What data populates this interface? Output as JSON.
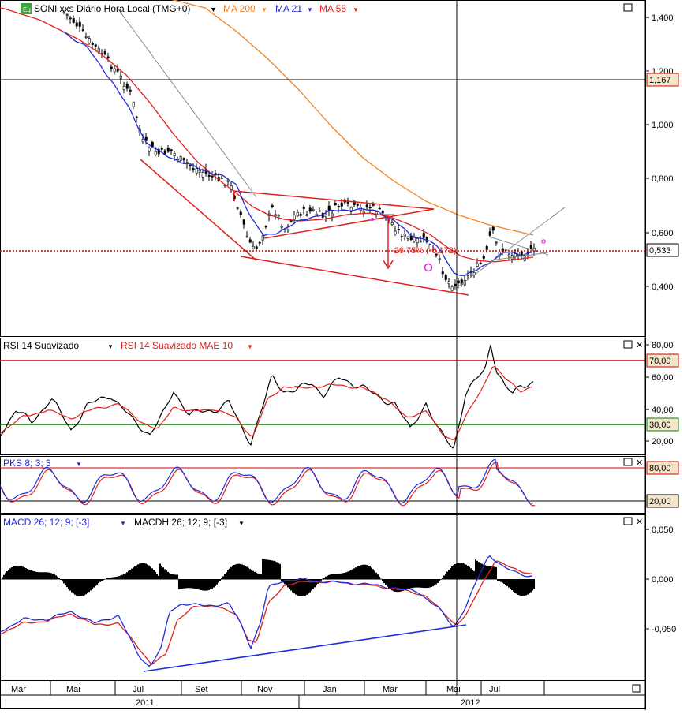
{
  "main_panel": {
    "badge": "Eq",
    "symbol_title": "SONI xxs Diário Hora Local (TMG+0)",
    "ma_labels": [
      {
        "label": "MA 200",
        "color": "#f58220"
      },
      {
        "label": "MA 21",
        "color": "#1f2bd6"
      },
      {
        "label": "MA 55",
        "color": "#e0201a"
      }
    ],
    "price_ticks": [
      "1,400",
      "1,200",
      "1,000",
      "0,800",
      "0,600",
      "0,400"
    ],
    "crosshair_value": "1,167",
    "last_value": "0,533",
    "annotation": "-26,75% (-0,172)"
  },
  "rsi_panel": {
    "label1": "RSI 14 Suavizado",
    "label2": "RSI 14 Suavizado MAE 10",
    "ticks": [
      "80,00",
      "60,00",
      "40,00",
      "20,00"
    ],
    "level_high": "70,00",
    "level_low": "30,00"
  },
  "pks_panel": {
    "label": "PKS 8; 3; 3",
    "level_high": "80,00",
    "level_low": "20,00"
  },
  "macd_panel": {
    "label1": "MACD 26; 12; 9; [-3]",
    "label2": "MACDH 26; 12; 9; [-3]",
    "ticks": [
      "0,050",
      "0,000",
      "-0,050"
    ]
  },
  "time_axis": {
    "months": [
      "Mar",
      "Mai",
      "Jul",
      "Set",
      "Nov",
      "Jan",
      "Mar",
      "Mai",
      "Jul"
    ],
    "years": [
      "2011",
      "2012"
    ]
  },
  "colors": {
    "ma200": "#f58220",
    "ma21": "#1f2bd6",
    "ma55": "#e0201a",
    "level_high": "#d40000",
    "level_low": "#008000",
    "label_bg": "#f3e6c8"
  },
  "chart_data": [
    {
      "type": "line",
      "name": "price",
      "x": [
        "2011-03",
        "2011-05",
        "2011-07",
        "2011-09",
        "2011-11",
        "2012-01",
        "2012-03",
        "2012-05",
        "2012-07"
      ],
      "series": [
        {
          "name": "SONI",
          "values": [
            1.44,
            1.32,
            0.88,
            0.78,
            0.52,
            0.7,
            0.65,
            0.42,
            0.53
          ]
        },
        {
          "name": "MA 21",
          "values": [
            1.4,
            1.28,
            0.95,
            0.8,
            0.55,
            0.68,
            0.66,
            0.45,
            0.52
          ]
        },
        {
          "name": "MA 55",
          "values": [
            1.41,
            1.32,
            1.0,
            0.8,
            0.6,
            0.67,
            0.66,
            0.52,
            0.51
          ]
        },
        {
          "name": "MA 200",
          "values": [
            1.43,
            1.4,
            1.3,
            1.1,
            0.95,
            0.8,
            0.72,
            0.64,
            0.6
          ]
        }
      ],
      "ylim": [
        0.28,
        1.45
      ]
    },
    {
      "type": "line",
      "name": "RSI 14 Suavizado",
      "series": [
        {
          "name": "RSI 14 Suavizado",
          "values": [
            30,
            40,
            25,
            50,
            20,
            60,
            55,
            18,
            55
          ]
        },
        {
          "name": "RSI 14 Suavizado MAE 10",
          "values": [
            32,
            38,
            28,
            45,
            25,
            55,
            50,
            25,
            52
          ]
        }
      ],
      "ylim": [
        10,
        85
      ]
    },
    {
      "type": "line",
      "name": "PKS 8; 3; 3",
      "ylim": [
        0,
        100
      ]
    },
    {
      "type": "bar",
      "name": "MACD 26; 12; 9; [-3]",
      "ylim": [
        -0.085,
        0.065
      ]
    }
  ]
}
